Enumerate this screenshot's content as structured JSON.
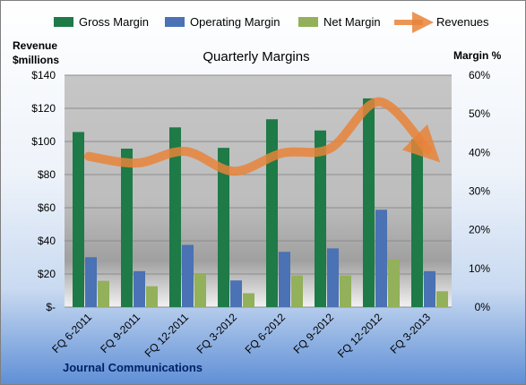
{
  "chart_data": {
    "type": "bar",
    "title": "Quarterly Margins",
    "footer": "Journal Communications",
    "left_axis": {
      "label_line1": "Revenue",
      "label_line2": "$millions",
      "min": 0,
      "max": 140,
      "ticks": [
        "$-",
        "$20",
        "$40",
        "$60",
        "$80",
        "$100",
        "$120",
        "$140"
      ]
    },
    "right_axis": {
      "label": "Margin %",
      "min": 0,
      "max": 60,
      "ticks": [
        "0%",
        "10%",
        "20%",
        "30%",
        "40%",
        "50%",
        "60%"
      ]
    },
    "categories": [
      "FQ 6-2011",
      "FQ 9-2011",
      "FQ 12-2011",
      "FQ 3-2012",
      "FQ 6-2012",
      "FQ 9-2012",
      "FQ 12-2012",
      "FQ 3-2013"
    ],
    "series": [
      {
        "name": "Gross Margin",
        "kind": "bar",
        "axis": "right",
        "color": "#1e7a46",
        "values": [
          45.3,
          41.0,
          46.5,
          41.2,
          48.6,
          45.7,
          54.0,
          43.4
        ]
      },
      {
        "name": "Operating Margin",
        "kind": "bar",
        "axis": "right",
        "color": "#4a72b4",
        "values": [
          12.9,
          9.3,
          16.1,
          6.9,
          14.3,
          15.2,
          25.2,
          9.3
        ]
      },
      {
        "name": "Net Margin",
        "kind": "bar",
        "axis": "right",
        "color": "#93b05a",
        "values": [
          6.8,
          5.4,
          8.8,
          3.6,
          8.2,
          8.2,
          12.3,
          4.1
        ]
      },
      {
        "name": "Revenues",
        "kind": "line",
        "axis": "left",
        "color": "#e8843a",
        "values": [
          91,
          87,
          94,
          82,
          93,
          96,
          124,
          95
        ]
      }
    ],
    "grid": true,
    "legend_position": "top"
  }
}
